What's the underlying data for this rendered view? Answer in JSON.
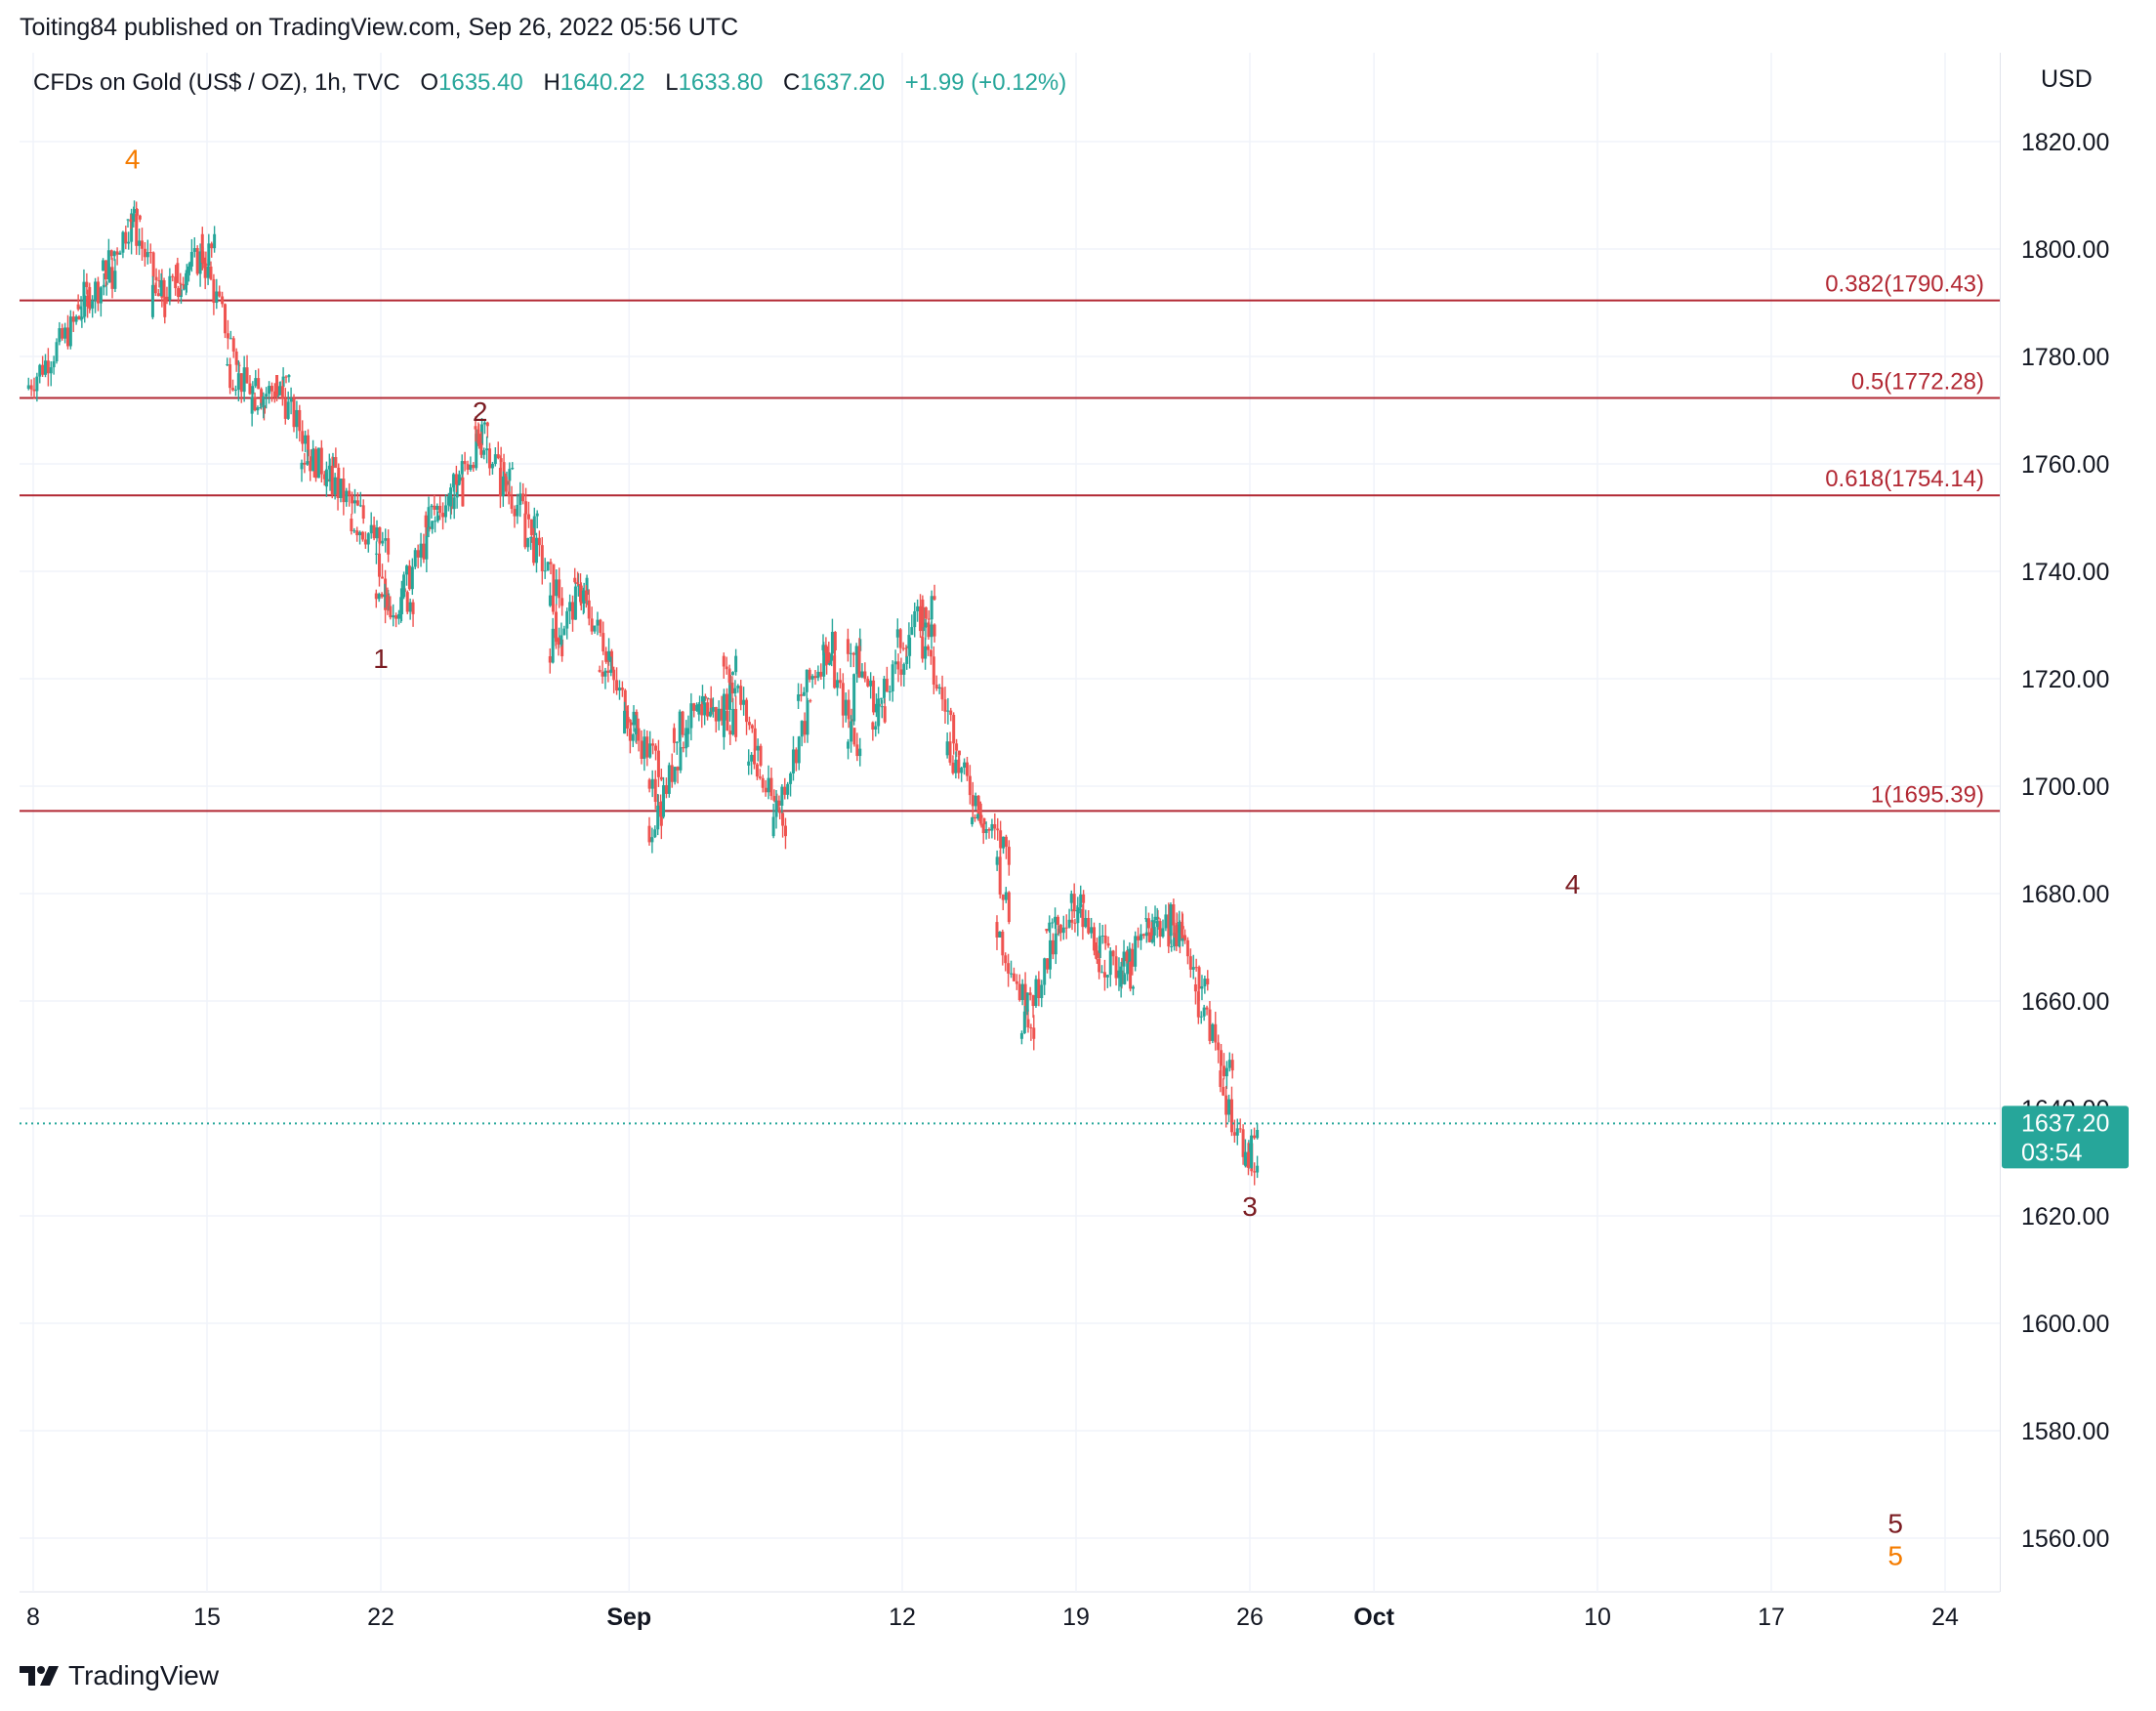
{
  "publisher": "Toiting84 published on TradingView.com, Sep 26, 2022 05:56 UTC",
  "footer": {
    "logo_text": "TradingView",
    "logo_icon": "tradingview-logo-icon"
  },
  "colors": {
    "up": "#26a69a",
    "down": "#ef5350",
    "fib": "#b22833",
    "wave_red": "#7b1c22",
    "wave_orange": "#f57c00",
    "price_badge": "#26a69a",
    "grid": "#f0f3fa"
  },
  "legend": {
    "symbol": "CFDs on Gold (US$ / OZ), 1h, TVC",
    "o_label": "O",
    "o_value": "1635.40",
    "h_label": "H",
    "h_value": "1640.22",
    "l_label": "L",
    "l_value": "1633.80",
    "c_label": "C",
    "c_value": "1637.20",
    "change": "+1.99 (+0.12%)"
  },
  "price_badge": {
    "price": "1637.20",
    "countdown": "03:54"
  },
  "chart_data": {
    "type": "candlestick",
    "currency": "USD",
    "ylim": [
      1550,
      1830
    ],
    "y_ticks": [
      "1820.00",
      "1800.00",
      "1780.00",
      "1760.00",
      "1740.00",
      "1720.00",
      "1700.00",
      "1680.00",
      "1660.00",
      "1640.00",
      "1620.00",
      "1600.00",
      "1580.00",
      "1560.00"
    ],
    "x_ticks": [
      "8",
      "15",
      "22",
      "Sep",
      "12",
      "19",
      "26",
      "Oct",
      "10",
      "17",
      "24"
    ],
    "path_points": [
      [
        "Aug 8",
        1774
      ],
      [
        "Aug 10",
        1790
      ],
      [
        "Aug 11",
        1795
      ],
      [
        "Aug 12",
        1808
      ],
      [
        "Aug 13",
        1790
      ],
      [
        "Aug 14",
        1795
      ],
      [
        "Aug 15",
        1800
      ],
      [
        "Aug 16",
        1778
      ],
      [
        "Aug 17",
        1772
      ],
      [
        "Aug 18",
        1775
      ],
      [
        "Aug 19",
        1762
      ],
      [
        "Aug 20",
        1758
      ],
      [
        "Aug 21",
        1750
      ],
      [
        "Aug 22",
        1744
      ],
      [
        "Aug 22",
        1733
      ],
      [
        "Aug 23",
        1735
      ],
      [
        "Aug 24",
        1750
      ],
      [
        "Aug 25",
        1755
      ],
      [
        "Aug 26",
        1766
      ],
      [
        "Aug 27",
        1757
      ],
      [
        "Aug 28",
        1748
      ],
      [
        "Aug 29",
        1735
      ],
      [
        "Aug 29",
        1725
      ],
      [
        "Aug 30",
        1738
      ],
      [
        "Aug 31",
        1724
      ],
      [
        "Sep 1",
        1712
      ],
      [
        "Sep 2",
        1704
      ],
      [
        "Sep 2",
        1690
      ],
      [
        "Sep 3",
        1710
      ],
      [
        "Sep 4",
        1715
      ],
      [
        "Sep 5",
        1712
      ],
      [
        "Sep 5",
        1725
      ],
      [
        "Sep 6",
        1706
      ],
      [
        "Sep 7",
        1693
      ],
      [
        "Sep 8",
        1715
      ],
      [
        "Sep 9",
        1728
      ],
      [
        "Sep 10",
        1706
      ],
      [
        "Sep 10",
        1728
      ],
      [
        "Sep 11",
        1712
      ],
      [
        "Sep 12",
        1726
      ],
      [
        "Sep 13",
        1734
      ],
      [
        "Sep 13",
        1727
      ],
      [
        "Sep 14",
        1708
      ],
      [
        "Sep 15",
        1695
      ],
      [
        "Sep 16",
        1688
      ],
      [
        "Sep 16",
        1675
      ],
      [
        "Sep 17",
        1655
      ],
      [
        "Sep 18",
        1672
      ],
      [
        "Sep 19",
        1678
      ],
      [
        "Sep 20",
        1668
      ],
      [
        "Sep 21",
        1665
      ],
      [
        "Sep 22",
        1675
      ],
      [
        "Sep 23",
        1672
      ],
      [
        "Sep 23",
        1676
      ],
      [
        "Sep 24",
        1662
      ],
      [
        "Sep 25",
        1645
      ],
      [
        "Sep 26",
        1627
      ],
      [
        "Sep 26",
        1637.2
      ]
    ],
    "fib_levels": [
      {
        "label": "0.382(1790.43)",
        "value": 1790.43
      },
      {
        "label": "0.5(1772.28)",
        "value": 1772.28
      },
      {
        "label": "0.618(1754.14)",
        "value": 1754.14
      },
      {
        "label": "1(1695.39)",
        "value": 1695.39
      }
    ],
    "wave_labels": [
      {
        "text": "4",
        "date": "Aug 12",
        "price": 1815,
        "color": "orange"
      },
      {
        "text": "1",
        "date": "Aug 22",
        "price": 1722,
        "color": "red"
      },
      {
        "text": "2",
        "date": "Aug 26",
        "price": 1768,
        "color": "red"
      },
      {
        "text": "3",
        "date": "Sep 26",
        "price": 1620,
        "color": "red"
      },
      {
        "text": "4",
        "date": "Oct 9",
        "price": 1680,
        "color": "red"
      },
      {
        "text": "5",
        "date": "Oct 22",
        "price": 1561,
        "color": "red"
      },
      {
        "text": "5",
        "date": "Oct 22",
        "price": 1555,
        "color": "orange"
      }
    ],
    "last_price": 1637.2
  }
}
